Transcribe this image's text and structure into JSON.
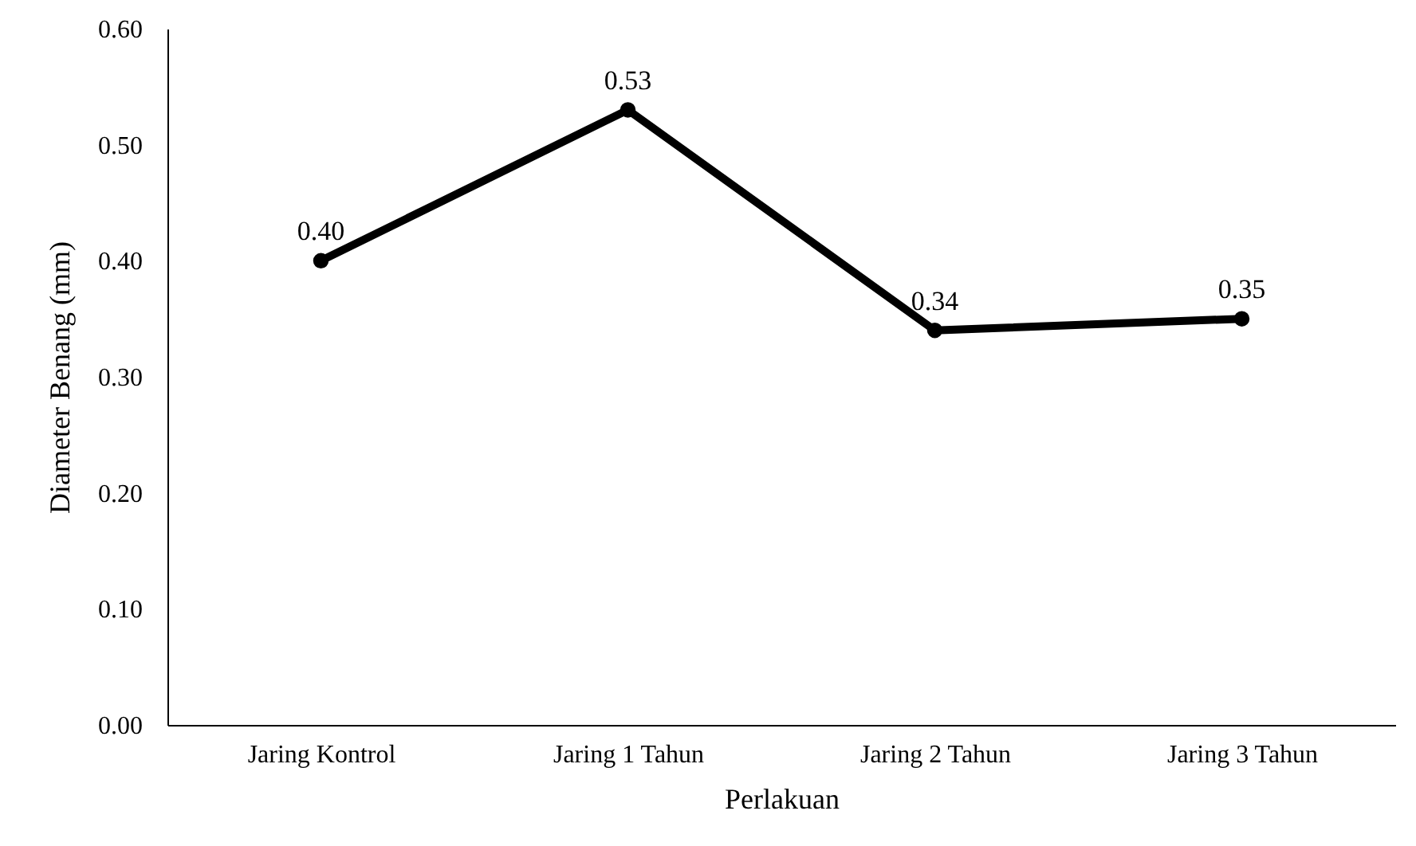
{
  "chart_data": {
    "type": "line",
    "xlabel": "Perlakuan",
    "ylabel": "Diameter Benang (mm)",
    "categories": [
      "Jaring Kontrol",
      "Jaring 1 Tahun",
      "Jaring 2 Tahun",
      "Jaring 3 Tahun"
    ],
    "series": [
      {
        "color": "#000000",
        "values": [
          0.4,
          0.53,
          0.34,
          0.35
        ],
        "value_labels": [
          "0.40",
          "0.53",
          "0.34",
          "0.35"
        ]
      }
    ],
    "ylim": [
      0,
      0.6
    ],
    "yticks": [
      {
        "value": 0,
        "label": "0.00"
      },
      {
        "value": 0.1,
        "label": "0.10"
      },
      {
        "value": 0.2,
        "label": "0.20"
      },
      {
        "value": 0.3,
        "label": "0.30"
      },
      {
        "value": 0.4,
        "label": "0.40"
      },
      {
        "value": 0.5,
        "label": "0.50"
      },
      {
        "value": 0.6,
        "label": "0.60"
      }
    ],
    "marker": "circle",
    "line_style": "solid",
    "grid": false
  }
}
